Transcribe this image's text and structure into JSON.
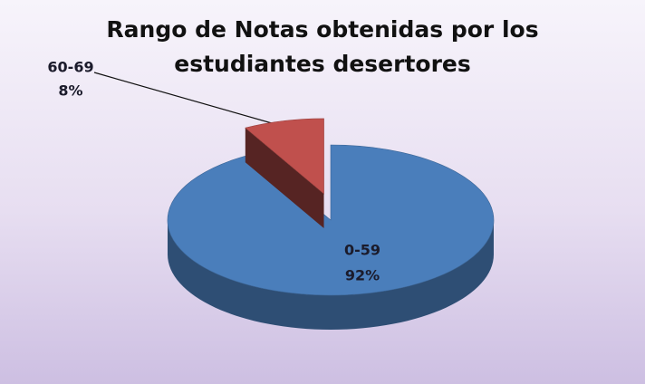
{
  "chart_data": {
    "type": "pie3d",
    "title": "Rango de Notas obtenidas por los estudiantes desertores",
    "categories": [
      "0-59",
      "60-69"
    ],
    "values": [
      92,
      8
    ],
    "value_labels": [
      "92%",
      "8%"
    ],
    "colors": [
      "#4a7ebb",
      "#c0504d"
    ]
  }
}
